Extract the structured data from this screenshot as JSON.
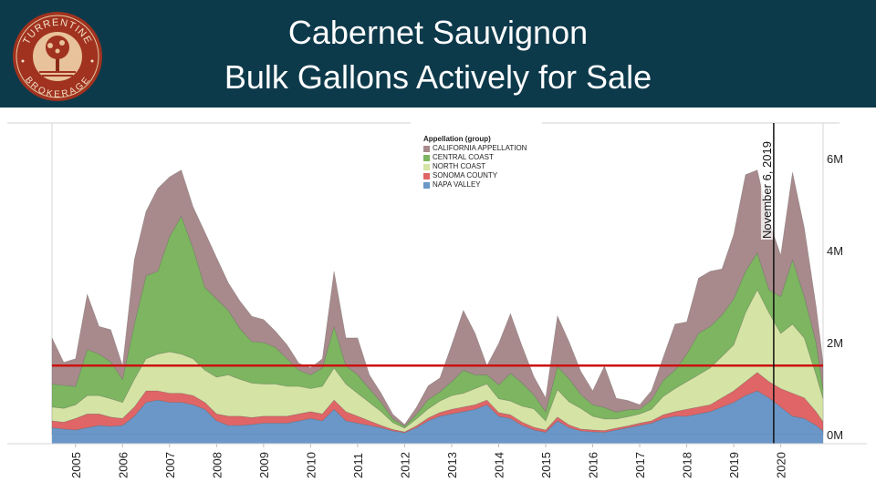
{
  "header": {
    "title_line1": "Cabernet Sauvignon",
    "title_line2": "Bulk Gallons Actively for Sale",
    "background": "#0d3a4b",
    "logo": {
      "text_top": "TURRENTINE",
      "text_bottom": "BROKERAGE",
      "icon": "tree-icon",
      "color": "#a0321f"
    }
  },
  "chart_data": {
    "type": "area",
    "stacked": true,
    "title": "Cabernet Sauvignon Bulk Gallons Actively for Sale",
    "xlabel": "",
    "ylabel": "",
    "xlim": [
      2004.5,
      2020.9
    ],
    "ylim": [
      0,
      6600000
    ],
    "x_ticks": [
      "2005",
      "2006",
      "2007",
      "2008",
      "2009",
      "2010",
      "2011",
      "2012",
      "2013",
      "2014",
      "2015",
      "2016",
      "2017",
      "2018",
      "2019",
      "2020"
    ],
    "y_ticks": [
      "0M",
      "2M",
      "4M",
      "6M"
    ],
    "y_tick_values": [
      0,
      2000000,
      4000000,
      6000000
    ],
    "grid": false,
    "legend": {
      "title": "Appellation (group)",
      "placement": "top-center",
      "entries": [
        "CALIFORNIA APPELLATION",
        "CENTRAL COAST",
        "NORTH COAST",
        "SONOMA COUNTY",
        "NAPA VALLEY"
      ]
    },
    "colors": {
      "NAPA VALLEY": "#6a97c8",
      "SONOMA COUNTY": "#e06566",
      "NORTH COAST": "#d5e3a4",
      "CENTRAL COAST": "#7db560",
      "CALIFORNIA APPELLATION": "#a88a8c"
    },
    "x": [
      2004.5,
      2004.75,
      2005.0,
      2005.25,
      2005.5,
      2005.75,
      2006.0,
      2006.25,
      2006.5,
      2006.75,
      2007.0,
      2007.25,
      2007.5,
      2007.75,
      2008.0,
      2008.25,
      2008.5,
      2008.75,
      2009.0,
      2009.25,
      2009.5,
      2009.75,
      2010.0,
      2010.25,
      2010.5,
      2010.75,
      2011.0,
      2011.25,
      2011.5,
      2011.75,
      2012.0,
      2012.25,
      2012.5,
      2012.75,
      2013.0,
      2013.25,
      2013.5,
      2013.75,
      2014.0,
      2014.25,
      2014.5,
      2014.75,
      2015.0,
      2015.25,
      2015.5,
      2015.75,
      2016.0,
      2016.25,
      2016.5,
      2016.75,
      2017.0,
      2017.25,
      2017.5,
      2017.75,
      2018.0,
      2018.25,
      2018.5,
      2018.75,
      2019.0,
      2019.25,
      2019.5,
      2019.75,
      2020.0,
      2020.25,
      2020.5,
      2020.75,
      2020.9
    ],
    "series": [
      {
        "name": "NAPA VALLEY",
        "values": [
          150000,
          120000,
          100000,
          150000,
          200000,
          180000,
          200000,
          400000,
          700000,
          750000,
          700000,
          700000,
          650000,
          550000,
          300000,
          200000,
          200000,
          220000,
          250000,
          250000,
          250000,
          300000,
          350000,
          300000,
          550000,
          300000,
          250000,
          200000,
          150000,
          80000,
          40000,
          150000,
          300000,
          400000,
          450000,
          500000,
          550000,
          650000,
          400000,
          350000,
          200000,
          100000,
          50000,
          300000,
          150000,
          80000,
          60000,
          50000,
          100000,
          150000,
          200000,
          250000,
          350000,
          400000,
          400000,
          450000,
          500000,
          600000,
          700000,
          850000,
          950000,
          800000,
          600000,
          400000,
          350000,
          200000,
          80000
        ]
      },
      {
        "name": "SONOMA COUNTY",
        "values": [
          150000,
          150000,
          250000,
          300000,
          250000,
          200000,
          150000,
          200000,
          250000,
          200000,
          200000,
          200000,
          200000,
          150000,
          150000,
          200000,
          200000,
          150000,
          150000,
          150000,
          150000,
          150000,
          150000,
          150000,
          200000,
          200000,
          150000,
          100000,
          50000,
          30000,
          20000,
          40000,
          60000,
          80000,
          100000,
          100000,
          100000,
          100000,
          80000,
          80000,
          70000,
          60000,
          50000,
          80000,
          60000,
          40000,
          40000,
          40000,
          40000,
          40000,
          50000,
          50000,
          80000,
          100000,
          150000,
          150000,
          150000,
          200000,
          250000,
          300000,
          400000,
          350000,
          400000,
          500000,
          450000,
          300000,
          200000
        ]
      },
      {
        "name": "NORTH COAST",
        "values": [
          300000,
          300000,
          300000,
          400000,
          400000,
          400000,
          350000,
          600000,
          700000,
          800000,
          900000,
          850000,
          800000,
          700000,
          800000,
          900000,
          800000,
          750000,
          700000,
          700000,
          650000,
          600000,
          500000,
          600000,
          700000,
          600000,
          500000,
          400000,
          300000,
          150000,
          80000,
          150000,
          200000,
          250000,
          300000,
          300000,
          350000,
          350000,
          300000,
          300000,
          350000,
          400000,
          200000,
          600000,
          500000,
          450000,
          300000,
          250000,
          200000,
          200000,
          200000,
          250000,
          400000,
          500000,
          600000,
          700000,
          800000,
          900000,
          1000000,
          1500000,
          1800000,
          1500000,
          1200000,
          1500000,
          1300000,
          800000,
          500000
        ]
      },
      {
        "name": "CENTRAL COAST",
        "values": [
          500000,
          500000,
          400000,
          1000000,
          900000,
          800000,
          500000,
          1200000,
          1800000,
          1800000,
          2500000,
          3000000,
          2400000,
          1800000,
          1700000,
          1400000,
          1100000,
          900000,
          900000,
          800000,
          600000,
          350000,
          300000,
          400000,
          900000,
          400000,
          400000,
          300000,
          200000,
          80000,
          40000,
          100000,
          200000,
          200000,
          300000,
          500000,
          300000,
          200000,
          300000,
          600000,
          500000,
          300000,
          200000,
          500000,
          500000,
          300000,
          250000,
          250000,
          150000,
          150000,
          100000,
          200000,
          350000,
          400000,
          600000,
          900000,
          900000,
          900000,
          1000000,
          900000,
          800000,
          500000,
          800000,
          1400000,
          900000,
          700000,
          200000
        ]
      },
      {
        "name": "CALIFORNIA APPELLATION",
        "values": [
          1000000,
          500000,
          600000,
          1200000,
          600000,
          700000,
          300000,
          1400000,
          1400000,
          1800000,
          1300000,
          1000000,
          900000,
          1200000,
          900000,
          600000,
          600000,
          550000,
          500000,
          350000,
          300000,
          150000,
          150000,
          200000,
          1200000,
          600000,
          800000,
          300000,
          200000,
          100000,
          40000,
          150000,
          300000,
          300000,
          800000,
          1300000,
          900000,
          200000,
          900000,
          1300000,
          800000,
          400000,
          300000,
          1100000,
          800000,
          500000,
          300000,
          900000,
          300000,
          200000,
          100000,
          200000,
          500000,
          1000000,
          700000,
          1200000,
          1200000,
          1000000,
          1400000,
          2100000,
          1800000,
          1500000,
          900000,
          1900000,
          1500000,
          800000,
          600000
        ]
      }
    ],
    "reference_lines": [
      {
        "orientation": "horizontal",
        "value": 1500000,
        "color": "#cc1111",
        "label": ""
      },
      {
        "orientation": "vertical",
        "value": 2019.85,
        "color": "#111111",
        "label": "November 6, 2019"
      }
    ]
  }
}
